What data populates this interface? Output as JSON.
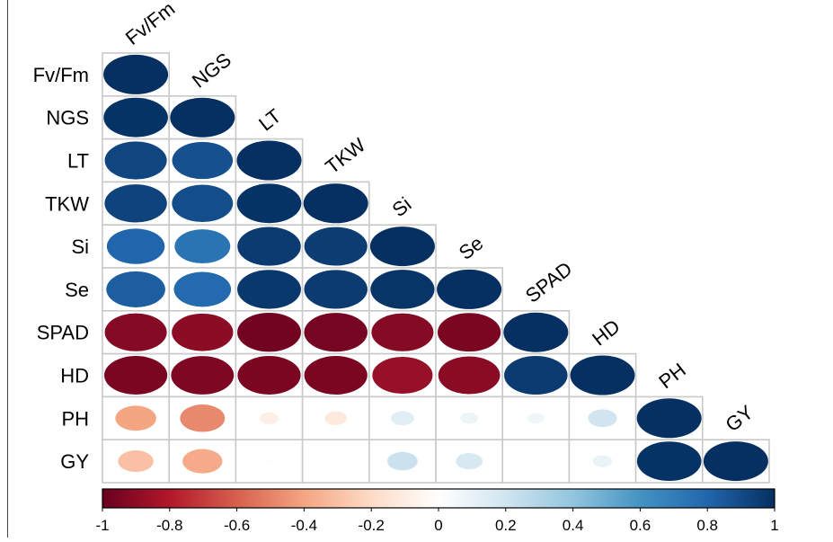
{
  "chart_data": {
    "type": "heatmap",
    "title": "",
    "variables": [
      "Fv/Fm",
      "NGS",
      "LT",
      "TKW",
      "Si",
      "Se",
      "SPAD",
      "HD",
      "PH",
      "GY"
    ],
    "matrix_shape": "lower-triangle",
    "glyph": "ellipse",
    "matrix": [
      [
        1.0
      ],
      [
        0.99,
        1.0
      ],
      [
        0.92,
        0.88,
        1.0
      ],
      [
        0.93,
        0.89,
        0.99,
        1.0
      ],
      [
        0.8,
        0.74,
        0.96,
        0.95,
        1.0
      ],
      [
        0.83,
        0.78,
        0.97,
        0.96,
        0.98,
        1.0
      ],
      [
        -0.92,
        -0.9,
        -0.97,
        -0.96,
        -0.92,
        -0.95,
        1.0
      ],
      [
        -0.95,
        -0.94,
        -0.95,
        -0.95,
        -0.87,
        -0.91,
        0.96,
        1.0
      ],
      [
        -0.4,
        -0.48,
        -0.09,
        -0.12,
        0.13,
        0.08,
        0.07,
        0.2,
        1.0
      ],
      [
        -0.3,
        -0.38,
        -0.01,
        0.0,
        0.22,
        0.17,
        0.0,
        0.09,
        0.99,
        1.0
      ]
    ],
    "colorbar": {
      "range": [
        -1,
        1
      ],
      "ticks": [
        -1,
        -0.8,
        -0.6,
        -0.4,
        -0.2,
        0,
        0.2,
        0.4,
        0.6,
        0.8,
        1
      ],
      "tick_labels": [
        "-1",
        "-0.8",
        "-0.6",
        "-0.4",
        "-0.2",
        "0",
        "0.2",
        "0.4",
        "0.6",
        "0.8",
        "1"
      ],
      "placement": "bottom",
      "colors": [
        "#67001F",
        "#B2182B",
        "#D6604D",
        "#F4A582",
        "#FDDBC7",
        "#FFFFFF",
        "#D1E5F0",
        "#92C5DE",
        "#4393C3",
        "#2166AC",
        "#053061"
      ]
    },
    "grid": true,
    "grid_color": "#c9c9c9"
  }
}
